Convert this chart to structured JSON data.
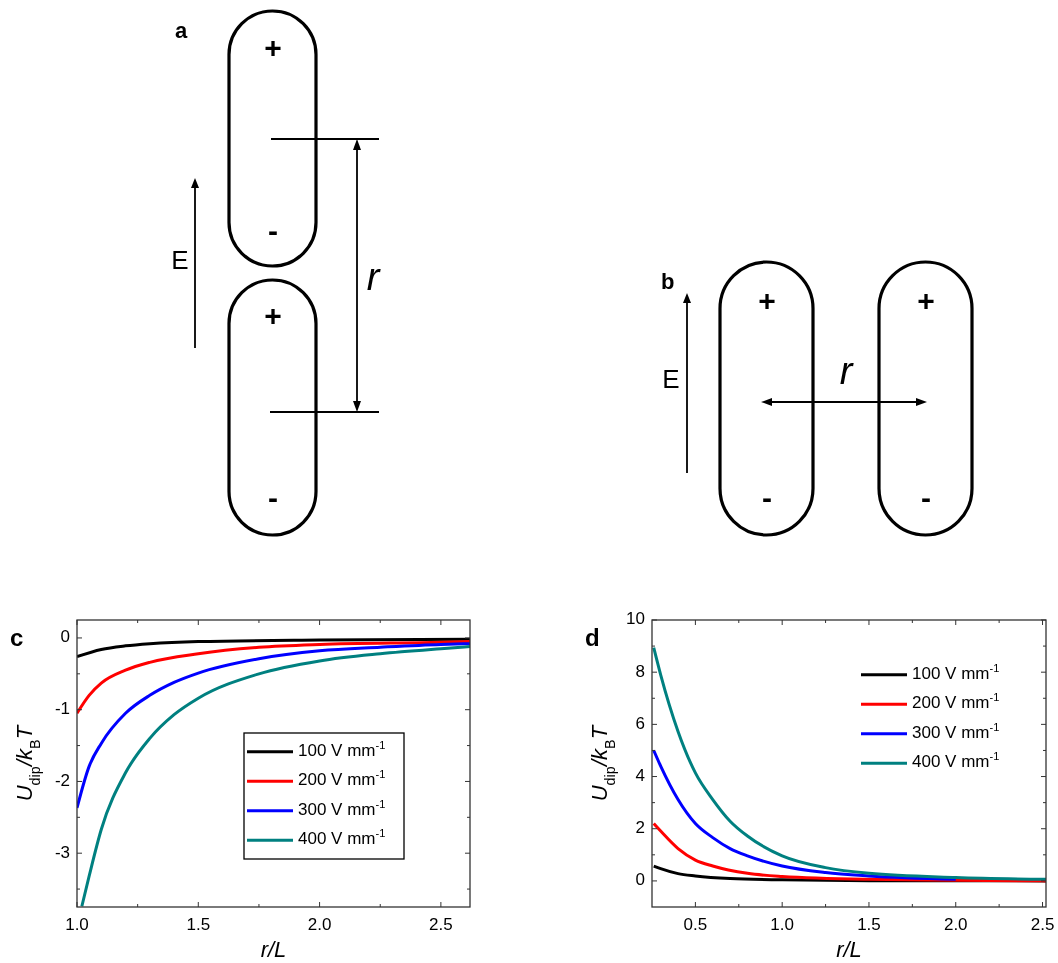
{
  "chart_data": [
    {
      "type": "other",
      "title": "a",
      "annotations": [
        "+",
        "-",
        "+",
        "-",
        "E",
        "r"
      ]
    },
    {
      "type": "other",
      "title": "b",
      "annotations": [
        "+",
        "-",
        "+",
        "-",
        "E",
        "r"
      ]
    },
    {
      "type": "line",
      "title": "c",
      "xlabel": "r/L",
      "ylabel": "U$_{dip}$/k$_{B}$T",
      "legend": "bottom right",
      "xlim": [
        1.0,
        2.62
      ],
      "xticks": [
        {
          "value": 1.0,
          "label": "1.0"
        },
        {
          "value": 1.25,
          "label": null
        },
        {
          "value": 1.5,
          "label": "1.5"
        },
        {
          "value": 1.75,
          "label": null
        },
        {
          "value": 2.0,
          "label": "2.0"
        },
        {
          "value": 2.25,
          "label": null
        },
        {
          "value": 2.5,
          "label": "2.5"
        }
      ],
      "ylim": [
        -3.75,
        0.25
      ],
      "yticks": [
        {
          "value": -3.5,
          "label": null
        },
        -3,
        {
          "value": -2.5,
          "label": null
        },
        -2,
        {
          "value": -1.5,
          "label": null
        },
        -1,
        {
          "value": -0.5,
          "label": null
        },
        0
      ],
      "series": [
        {
          "name": "100 V mm$^{-1}$",
          "color": "#000000",
          "x": [
            1.0,
            1.1,
            1.2,
            1.3,
            1.5,
            2.0,
            2.62
          ],
          "values": [
            -0.26,
            -0.16,
            -0.11,
            -0.08,
            -0.05,
            -0.03,
            -0.02
          ]
        },
        {
          "name": "200 V mm$^{-1}$",
          "color": "#ff0000",
          "x": [
            1.0,
            1.05,
            1.1,
            1.2,
            1.3,
            1.5,
            1.75,
            2.0,
            2.5,
            2.62
          ],
          "values": [
            -1.05,
            -0.8,
            -0.63,
            -0.45,
            -0.34,
            -0.22,
            -0.13,
            -0.09,
            -0.06,
            -0.05
          ]
        },
        {
          "name": "300 V mm$^{-1}$",
          "color": "#0000ff",
          "x": [
            1.0,
            1.05,
            1.1,
            1.2,
            1.3,
            1.4,
            1.5,
            1.75,
            2.0,
            2.25,
            2.5,
            2.62
          ],
          "values": [
            -2.37,
            -1.79,
            -1.47,
            -1.05,
            -0.8,
            -0.62,
            -0.49,
            -0.29,
            -0.18,
            -0.13,
            -0.09,
            -0.08
          ]
        },
        {
          "name": "400 V mm$^{-1}$",
          "color": "#008080",
          "x": [
            1.02,
            1.05,
            1.1,
            1.2,
            1.3,
            1.4,
            1.5,
            1.75,
            2.0,
            2.25,
            2.5,
            2.62
          ],
          "values": [
            -3.74,
            -3.32,
            -2.67,
            -1.88,
            -1.4,
            -1.07,
            -0.84,
            -0.5,
            -0.32,
            -0.22,
            -0.15,
            -0.12
          ]
        }
      ]
    },
    {
      "type": "line",
      "title": "d",
      "xlabel": "r/L",
      "ylabel": "U$_{dip}$/k$_{B}$T",
      "legend": "top right",
      "xlim": [
        0.25,
        2.52
      ],
      "xticks": [
        {
          "value": 0.5,
          "label": "0.5"
        },
        {
          "value": 0.75,
          "label": null
        },
        {
          "value": 1.0,
          "label": "1.0"
        },
        {
          "value": 1.25,
          "label": null
        },
        {
          "value": 1.5,
          "label": "1.5"
        },
        {
          "value": 1.75,
          "label": null
        },
        {
          "value": 2.0,
          "label": "2.0"
        },
        {
          "value": 2.25,
          "label": null
        },
        {
          "value": 2.5,
          "label": "2.5"
        }
      ],
      "ylim": [
        -1,
        10
      ],
      "yticks": [
        0,
        {
          "value": 1,
          "label": null
        },
        2,
        {
          "value": 3,
          "label": null
        },
        4,
        {
          "value": 5,
          "label": null
        },
        6,
        {
          "value": 7,
          "label": null
        },
        8,
        {
          "value": 9,
          "label": null
        },
        10
      ],
      "series": [
        {
          "name": "100 V mm$^{-1}$",
          "color": "#000000",
          "x": [
            0.26,
            0.3,
            0.4,
            0.5,
            0.7,
            1.0,
            1.5,
            2.52
          ],
          "values": [
            0.57,
            0.47,
            0.28,
            0.19,
            0.09,
            0.04,
            0.01,
            0
          ]
        },
        {
          "name": "200 V mm$^{-1}$",
          "color": "#ff0000",
          "x": [
            0.26,
            0.3,
            0.4,
            0.5,
            0.6,
            0.8,
            1.0,
            1.5,
            2.0,
            2.52
          ],
          "values": [
            2.2,
            1.91,
            1.24,
            0.8,
            0.57,
            0.29,
            0.17,
            0.06,
            0.03,
            0
          ]
        },
        {
          "name": "300 V mm$^{-1}$",
          "color": "#0000ff",
          "x": [
            0.26,
            0.3,
            0.4,
            0.5,
            0.6,
            0.7,
            0.8,
            1.0,
            1.25,
            1.5,
            2.0
          ],
          "values": [
            5.0,
            4.4,
            3.12,
            2.2,
            1.66,
            1.24,
            0.96,
            0.57,
            0.32,
            0.19,
            0.06
          ]
        },
        {
          "name": "400 V mm$^{-1}$",
          "color": "#008080",
          "x": [
            0.26,
            0.3,
            0.4,
            0.5,
            0.6,
            0.7,
            0.8,
            1.0,
            1.25,
            1.5,
            2.0,
            2.52
          ],
          "values": [
            8.94,
            7.9,
            5.73,
            4.14,
            3.12,
            2.29,
            1.72,
            0.96,
            0.51,
            0.29,
            0.13,
            0.06
          ]
        }
      ]
    }
  ]
}
